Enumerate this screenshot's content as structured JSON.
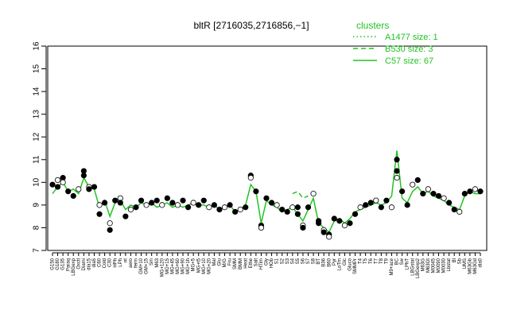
{
  "chart_data": {
    "type": "line",
    "title": "bltR [2716035,2716856,−1]",
    "xlabel": "",
    "ylabel": "",
    "ylim": [
      7,
      16
    ],
    "yticks": [
      7,
      8,
      9,
      10,
      11,
      12,
      13,
      14,
      15,
      16
    ],
    "grid": false,
    "legend": {
      "title": "clusters",
      "position": "top-right",
      "entries": [
        {
          "label": "A1477 size: 1",
          "style": "dotted"
        },
        {
          "label": "B530 size: 3",
          "style": "dashed"
        },
        {
          "label": "C57 size: 67",
          "style": "solid"
        }
      ]
    },
    "colors": {
      "line": "#22c322",
      "point": "#000000",
      "axis": "#000000"
    },
    "x_tick_labels": [
      "G150",
      "G180",
      "G135",
      "Paraq",
      "LBGexp",
      "Oxctl",
      "Diami",
      "dia15",
      "dia5",
      "C60",
      "Cold",
      "C30",
      "HPh",
      "LPh",
      "nt",
      "aero",
      "ferm",
      "GM+10",
      "GM+15",
      "Sm",
      "M63",
      "MG+120",
      "MG+15",
      "MG+45",
      "MG+60",
      "MG+90",
      "MG+1h",
      "MG+5",
      "MG+t5",
      "MG+10",
      "MG+20",
      "Mal",
      "Glu",
      "M/G",
      "Fru",
      "SMM",
      "BMM",
      "Heat",
      "Ethe",
      "Salt",
      "HTim",
      "Gly",
      "HOb",
      "S1",
      "S2",
      "S3",
      "S4",
      "S5",
      "S6",
      "S7",
      "S8",
      "BT",
      "B36",
      "B60",
      "Pyr",
      "LoTm",
      "Glc",
      "Gluco",
      "SMMPr",
      "T4",
      "T5",
      "T6",
      "T7",
      "T8",
      "T9",
      "M9+ace",
      "BC",
      "Sw",
      "LPhT",
      "LBGstat",
      "LBGexp2",
      "M63G",
      "M63Gt",
      "M0045",
      "M0090",
      "M0030",
      "Lbstat",
      "Bl",
      "Sb",
      "UMS",
      "M63Gb",
      "M63Gd",
      "dia0"
    ],
    "series": [
      {
        "cluster": "C57",
        "style": "solid",
        "x": [
          1,
          2,
          3,
          4,
          5,
          6,
          7,
          8,
          9,
          10,
          11,
          12,
          13,
          14,
          15,
          16,
          17,
          18,
          19,
          20,
          21,
          22,
          23,
          24,
          25,
          26,
          27,
          28,
          29,
          30,
          31,
          32,
          33,
          34,
          35,
          36,
          37,
          38,
          39,
          40,
          41,
          42,
          43,
          44,
          45,
          46,
          47,
          48,
          49,
          50,
          51,
          52,
          53,
          54,
          55,
          56,
          57,
          58,
          59,
          60,
          61,
          62,
          63,
          64,
          65,
          66,
          67,
          68,
          69,
          70,
          71,
          72,
          73,
          74,
          75,
          76,
          77,
          78,
          79,
          80,
          81,
          82,
          83
        ],
        "values": [
          9.5,
          9.8,
          10.0,
          9.6,
          9.7,
          9.5,
          10.2,
          9.8,
          9.7,
          8.9,
          9.2,
          8.5,
          9.1,
          9.2,
          8.8,
          9.0,
          8.9,
          9.1,
          9.0,
          9.1,
          8.9,
          9.0,
          9.1,
          8.9,
          9.0,
          8.9,
          9.0,
          9.1,
          9.0,
          9.0,
          8.9,
          9.0,
          8.8,
          8.9,
          9.0,
          8.7,
          8.8,
          9.0,
          9.9,
          9.6,
          8.2,
          9.2,
          9.0,
          8.9,
          8.7,
          8.8,
          8.9,
          8.6,
          8.3,
          8.8,
          9.3,
          8.2,
          8.0,
          7.8,
          8.3,
          8.4,
          8.2,
          8.4,
          8.7,
          8.8,
          8.9,
          9.0,
          9.1,
          9.0,
          9.1,
          9.4,
          11.4,
          9.3,
          9.1,
          9.6,
          9.8,
          9.5,
          9.6,
          9.4,
          9.3,
          9.2,
          9.0,
          8.9,
          8.8,
          9.4,
          9.6,
          9.5,
          9.5
        ]
      },
      {
        "cluster": "B530",
        "style": "dashed",
        "x": [
          47,
          48,
          49,
          50
        ],
        "values": [
          9.5,
          9.6,
          9.3,
          9.4
        ]
      },
      {
        "cluster": "A1477",
        "style": "dotted",
        "x": [
          66
        ],
        "values": [
          9.2
        ]
      }
    ],
    "points": {
      "x": [
        1,
        2,
        2,
        3,
        3,
        4,
        5,
        6,
        7,
        7,
        8,
        8,
        9,
        10,
        10,
        11,
        12,
        12,
        13,
        14,
        14,
        15,
        16,
        17,
        18,
        19,
        20,
        21,
        22,
        23,
        24,
        25,
        26,
        27,
        28,
        29,
        30,
        31,
        32,
        33,
        34,
        35,
        36,
        37,
        38,
        39,
        39,
        40,
        41,
        41,
        42,
        43,
        44,
        45,
        46,
        47,
        48,
        48,
        49,
        49,
        50,
        51,
        52,
        52,
        53,
        53,
        54,
        54,
        55,
        56,
        57,
        58,
        59,
        60,
        61,
        62,
        63,
        64,
        65,
        66,
        67,
        67,
        67,
        68,
        69,
        70,
        71,
        72,
        73,
        74,
        75,
        76,
        77,
        78,
        79,
        80,
        81,
        82,
        83
      ],
      "values": [
        9.9,
        10.1,
        9.8,
        10.2,
        10.0,
        9.6,
        9.4,
        9.7,
        10.3,
        10.5,
        9.8,
        9.7,
        9.8,
        9.0,
        8.6,
        9.1,
        8.2,
        7.9,
        9.2,
        9.3,
        9.1,
        8.5,
        8.8,
        8.9,
        9.2,
        9.0,
        9.1,
        9.2,
        9.0,
        9.3,
        9.1,
        9.0,
        9.2,
        8.9,
        9.1,
        9.0,
        9.2,
        8.9,
        9.0,
        8.8,
        8.9,
        9.0,
        8.7,
        8.8,
        8.9,
        10.3,
        10.2,
        9.6,
        8.1,
        8.0,
        9.3,
        9.1,
        9.0,
        8.8,
        8.7,
        8.9,
        8.9,
        8.6,
        8.1,
        8.0,
        8.9,
        9.5,
        8.2,
        8.3,
        7.9,
        7.8,
        7.7,
        7.6,
        8.4,
        8.3,
        8.1,
        8.2,
        8.6,
        8.9,
        9.0,
        9.1,
        9.2,
        8.9,
        9.2,
        8.9,
        11.0,
        10.5,
        10.2,
        9.6,
        9.0,
        9.9,
        10.1,
        9.5,
        9.7,
        9.5,
        9.4,
        9.3,
        9.1,
        8.8,
        8.7,
        9.5,
        9.6,
        9.7,
        9.6
      ]
    }
  }
}
